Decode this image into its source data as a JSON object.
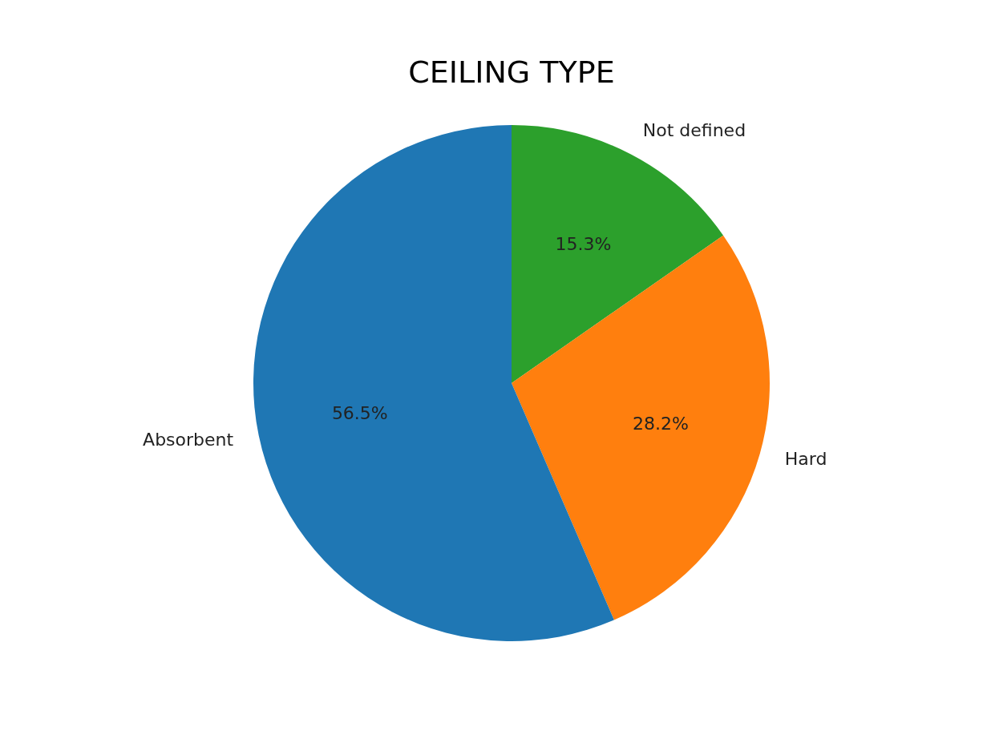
{
  "chart_data": {
    "type": "pie",
    "title": "CEILING TYPE",
    "categories": [
      "Not defined",
      "Hard",
      "Absorbent"
    ],
    "values": [
      15.3,
      28.2,
      56.5
    ],
    "value_labels": [
      "15.3%",
      "28.2%",
      "56.5%"
    ],
    "colors": [
      "#2ca02c",
      "#ff7f0e",
      "#1f77b4"
    ],
    "legend": false
  }
}
